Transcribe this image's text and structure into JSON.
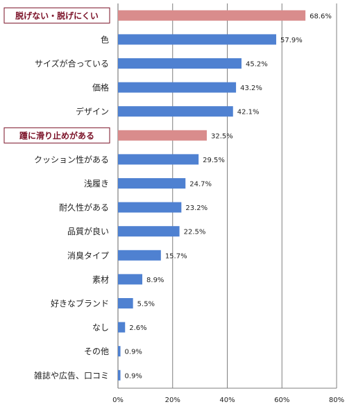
{
  "chart_data": {
    "type": "bar",
    "orientation": "horizontal",
    "categories": [
      "脱げない・脱げにくい",
      "色",
      "サイズが合っている",
      "価格",
      "デザイン",
      "踵に滑り止めがある",
      "クッション性がある",
      "浅履き",
      "耐久性がある",
      "品質が良い",
      "消臭タイプ",
      "素材",
      "好きなブランド",
      "なし",
      "その他",
      "雑誌や広告、口コミ"
    ],
    "values": [
      68.6,
      57.9,
      45.2,
      43.2,
      42.1,
      32.5,
      29.5,
      24.7,
      23.2,
      22.5,
      15.7,
      8.9,
      5.5,
      2.6,
      0.9,
      0.9
    ],
    "value_labels": [
      "68.6%",
      "57.9%",
      "45.2%",
      "43.2%",
      "42.1%",
      "32.5%",
      "29.5%",
      "24.7%",
      "23.2%",
      "22.5%",
      "15.7%",
      "8.9%",
      "5.5%",
      "2.6%",
      "0.9%",
      "0.9%"
    ],
    "highlighted": [
      0,
      5
    ],
    "xlim": [
      0,
      80
    ],
    "xticks": [
      0,
      20,
      40,
      60,
      80
    ],
    "xtick_labels": [
      "0%",
      "20%",
      "40%",
      "60%",
      "80%"
    ],
    "grid": true,
    "title": "",
    "xlabel": "",
    "ylabel": "",
    "colors": {
      "bar": "#4f81d1",
      "bar_highlight": "#d98c8c",
      "highlight_text": "#7a1026",
      "highlight_border": "#7a1026",
      "grid": "#7f7f7f"
    }
  }
}
